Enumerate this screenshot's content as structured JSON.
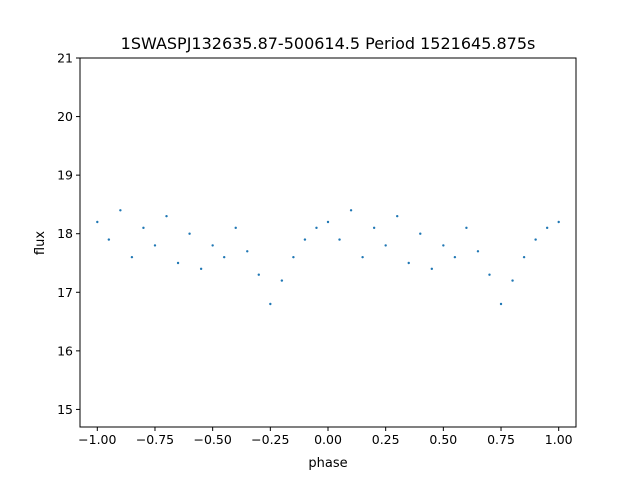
{
  "chart_data": {
    "type": "scatter",
    "title": "1SWASPJ132635.87-500614.5 Period 1521645.875s",
    "xlabel": "phase",
    "ylabel": "flux",
    "xlim": [
      -1.075,
      1.075
    ],
    "ylim": [
      14.7,
      21.0
    ],
    "xticks": [
      -1.0,
      -0.75,
      -0.5,
      -0.25,
      0.0,
      0.25,
      0.5,
      0.75,
      1.0
    ],
    "xtick_labels": [
      "−1.00",
      "−0.75",
      "−0.50",
      "−0.25",
      "0.00",
      "0.25",
      "0.50",
      "0.75",
      "1.00"
    ],
    "yticks": [
      15,
      16,
      17,
      18,
      19,
      20,
      21
    ],
    "ytick_labels": [
      "15",
      "16",
      "17",
      "18",
      "19",
      "20",
      "21"
    ],
    "grid": false,
    "point_color": "#1f77b4",
    "series": [
      {
        "points": [
          [
            -1.0,
            18.2
          ],
          [
            -0.95,
            17.9
          ],
          [
            -0.9,
            18.4
          ],
          [
            -0.85,
            17.6
          ],
          [
            -0.8,
            18.1
          ],
          [
            -0.75,
            17.8
          ],
          [
            -0.7,
            18.3
          ],
          [
            -0.65,
            17.5
          ],
          [
            -0.6,
            18.0
          ],
          [
            -0.55,
            17.4
          ],
          [
            -0.5,
            17.8
          ],
          [
            -0.45,
            17.6
          ],
          [
            -0.4,
            18.1
          ],
          [
            -0.35,
            17.7
          ],
          [
            -0.3,
            17.3
          ],
          [
            -0.25,
            16.8
          ],
          [
            -0.2,
            17.2
          ],
          [
            -0.15,
            17.6
          ],
          [
            -0.1,
            17.9
          ],
          [
            -0.05,
            18.1
          ],
          [
            0.0,
            18.2
          ],
          [
            0.05,
            17.9
          ],
          [
            0.1,
            18.4
          ],
          [
            0.15,
            17.6
          ],
          [
            0.2,
            18.1
          ],
          [
            0.25,
            17.8
          ],
          [
            0.3,
            18.3
          ],
          [
            0.35,
            17.5
          ],
          [
            0.4,
            18.0
          ],
          [
            0.45,
            17.4
          ],
          [
            0.5,
            17.8
          ],
          [
            0.55,
            17.6
          ],
          [
            0.6,
            18.1
          ],
          [
            0.65,
            17.7
          ],
          [
            0.7,
            17.3
          ],
          [
            0.75,
            16.8
          ],
          [
            0.8,
            17.2
          ],
          [
            0.85,
            17.6
          ],
          [
            0.9,
            17.9
          ],
          [
            0.95,
            18.1
          ],
          [
            1.0,
            18.2
          ]
        ]
      }
    ]
  }
}
